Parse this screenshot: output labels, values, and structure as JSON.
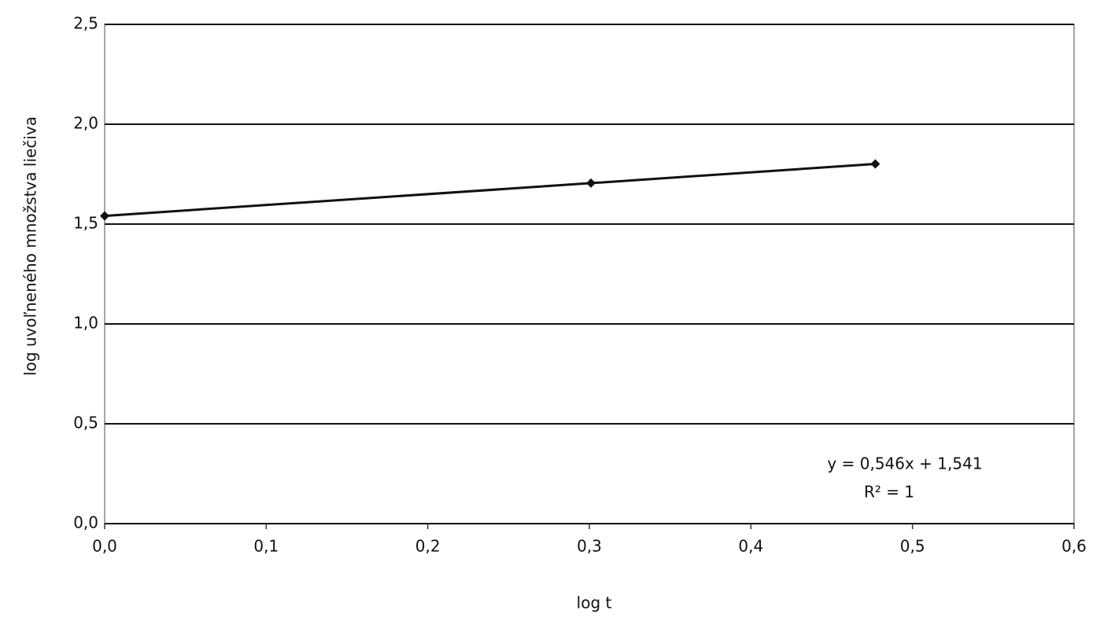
{
  "chart_data": {
    "type": "line",
    "x_label": "log t",
    "y_label": "log uvoľneného množstva liečiva",
    "annotations": [
      "y = 0,546x + 1,541",
      "R² = 1"
    ],
    "x": [
      0,
      0.301,
      0.477
    ],
    "series": [
      {
        "color": "#111111",
        "values": [
          1.541,
          1.705,
          1.801
        ]
      }
    ],
    "xlim": [
      0,
      0.6
    ],
    "ylim": [
      0,
      2.5
    ],
    "xticks": [
      {
        "value": 0,
        "label": "0,0"
      },
      {
        "value": 0.1,
        "label": "0,1"
      },
      {
        "value": 0.2,
        "label": "0,2"
      },
      {
        "value": 0.3,
        "label": "0,3"
      },
      {
        "value": 0.4,
        "label": "0,4"
      },
      {
        "value": 0.5,
        "label": "0,5"
      },
      {
        "value": 0.6,
        "label": "0,6"
      }
    ],
    "yticks": [
      {
        "value": 0,
        "label": "0,0"
      },
      {
        "value": 0.5,
        "label": "0,5"
      },
      {
        "value": 1,
        "label": "1,0"
      },
      {
        "value": 1.5,
        "label": "1,5"
      },
      {
        "value": 2,
        "label": "2,0"
      },
      {
        "value": 2.5,
        "label": "2,5"
      }
    ],
    "grid": true
  }
}
